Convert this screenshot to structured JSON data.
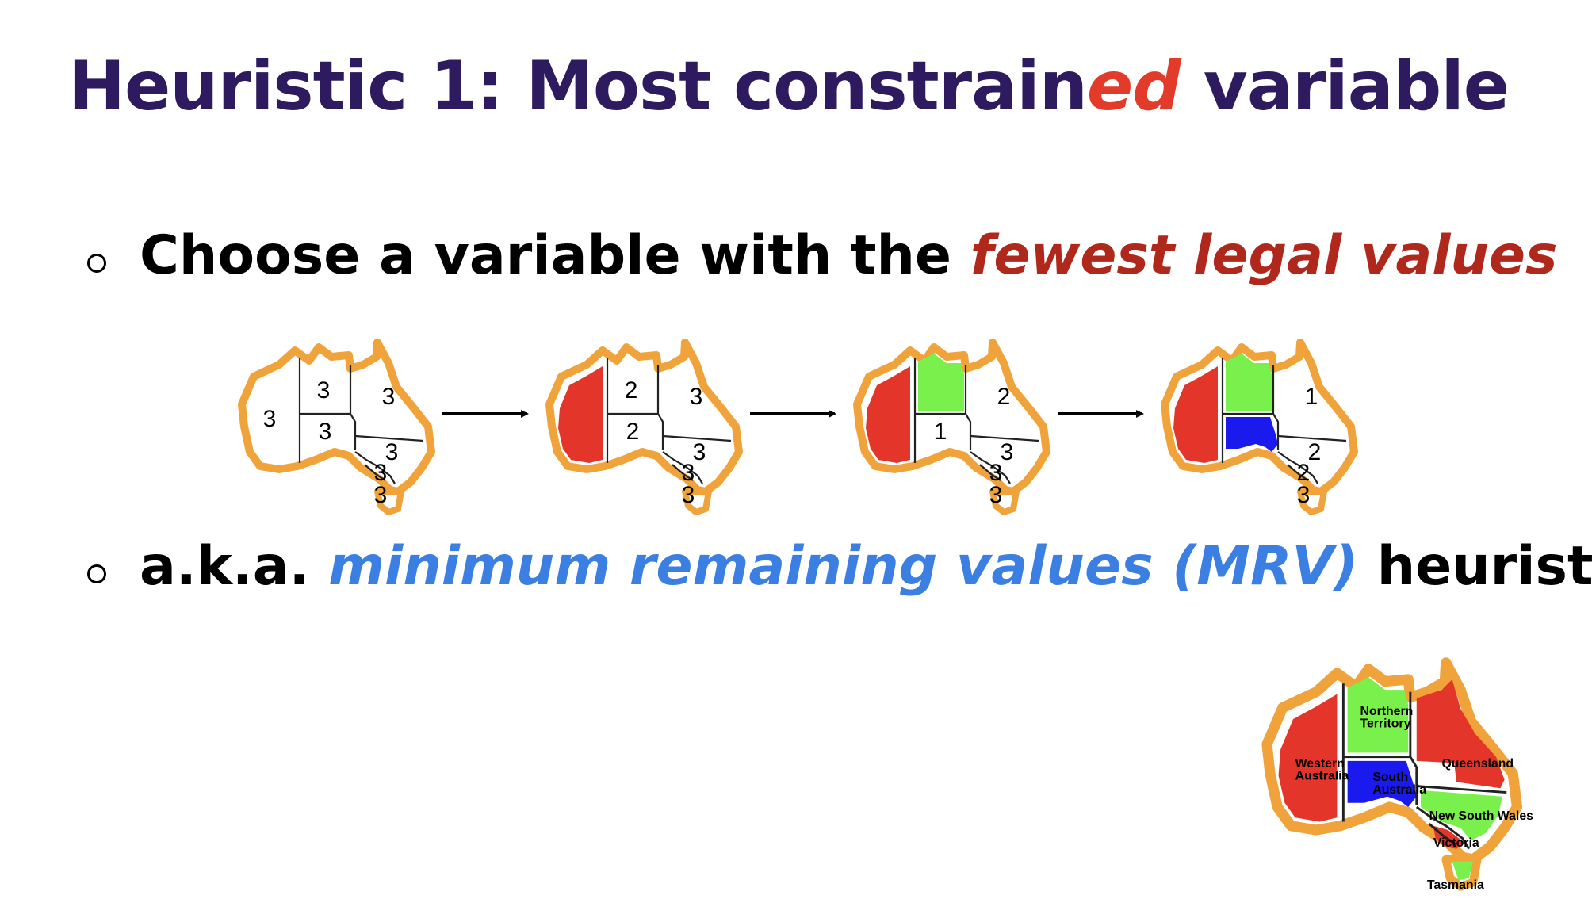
{
  "title": {
    "part1": "Heuristic 1: Most constrain",
    "accent": "ed",
    "part2": " variable"
  },
  "bullets": [
    {
      "text": "Choose a variable with the ",
      "emphasis": "fewest legal values",
      "after": ""
    },
    {
      "text": "a.k.a. ",
      "emphasis": "minimum remaining values (MRV)",
      "after": " heuristic"
    }
  ],
  "colors": {
    "title": "#2e1a5e",
    "accent_red": "#e33b2a",
    "emphasis_red": "#b0281c",
    "emphasis_blue": "#3b7fe3",
    "map_red": "#e4352a",
    "map_green": "#7af04c",
    "map_blue": "#1a1aee",
    "map_outline": "#f0a33a"
  },
  "sequence_maps": [
    {
      "WA": "3",
      "NT": "3",
      "Q": "3",
      "SA": "3",
      "NSW": "3",
      "V": "3",
      "T": "3"
    },
    {
      "WA": "",
      "NT": "2",
      "Q": "3",
      "SA": "2",
      "NSW": "3",
      "V": "3",
      "T": "3"
    },
    {
      "WA": "",
      "NT": "",
      "Q": "2",
      "SA": "1",
      "NSW": "3",
      "V": "3",
      "T": "3"
    },
    {
      "WA": "",
      "NT": "",
      "Q": "1",
      "SA": "",
      "NSW": "2",
      "V": "2",
      "T": "3"
    }
  ],
  "sequence_colors": [
    {
      "WA": "none",
      "NT": "none",
      "SA": "none",
      "Q": "none",
      "NSW": "none",
      "V": "none",
      "T": "none"
    },
    {
      "WA": "red",
      "NT": "none",
      "SA": "none",
      "Q": "none",
      "NSW": "none",
      "V": "none",
      "T": "none"
    },
    {
      "WA": "red",
      "NT": "green",
      "SA": "none",
      "Q": "none",
      "NSW": "none",
      "V": "none",
      "T": "none"
    },
    {
      "WA": "red",
      "NT": "green",
      "SA": "blue",
      "Q": "none",
      "NSW": "none",
      "V": "none",
      "T": "none"
    }
  ],
  "legend_map": {
    "WA": {
      "label_lines": [
        "Western",
        "Australia"
      ],
      "color": "red"
    },
    "NT": {
      "label_lines": [
        "Northern",
        "Territory"
      ],
      "color": "green"
    },
    "Q": {
      "label_lines": [
        "Queensland"
      ],
      "color": "red"
    },
    "SA": {
      "label_lines": [
        "South",
        "Australia"
      ],
      "color": "blue"
    },
    "NSW": {
      "label_lines": [
        "New South Wales"
      ],
      "color": "green"
    },
    "V": {
      "label_lines": [
        "Victoria"
      ],
      "color": "red"
    },
    "T": {
      "label_lines": [
        "Tasmania"
      ],
      "color": "green"
    }
  }
}
